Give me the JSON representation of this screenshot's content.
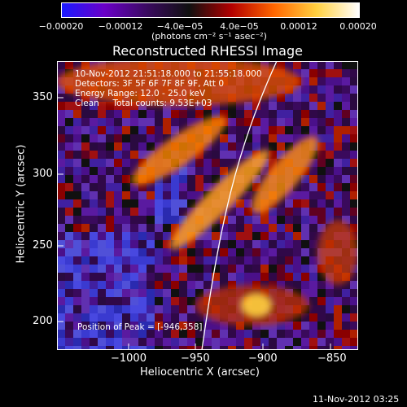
{
  "colorbar": {
    "ticks": [
      "−0.00020",
      "−0.00012",
      "−4.0e−05",
      "4.0e−05",
      "0.00012",
      "0.00020"
    ],
    "units": "(photons cm⁻² s⁻¹ asec⁻²)",
    "colors": [
      "#1a1aff",
      "#6a00c8",
      "#3a0a60",
      "#101010",
      "#b30000",
      "#ff6600",
      "#ffd040",
      "#ffffff"
    ]
  },
  "plot": {
    "title": "Reconstructed RHESSI Image",
    "info_lines": [
      "10-Nov-2012 21:51:18.000 to 21:55:18.000",
      "Detectors: 3F 5F 6F 7F 8F 9F, Att 0",
      "Energy Range: 12.0 - 25.0 keV",
      "Clean     Total counts: 9.53E+03"
    ],
    "peak_text": "Position of Peak = [-946,358]",
    "x_axis": {
      "label": "Heliocentric X (arcsec)",
      "ticks": [
        "−1000",
        "−950",
        "−900",
        "−850"
      ]
    },
    "y_axis": {
      "label": "Heliocentric Y (arcsec)",
      "ticks": [
        "350",
        "300",
        "250",
        "200"
      ]
    }
  },
  "footer": {
    "date": "11-Nov-2012 03:25"
  }
}
